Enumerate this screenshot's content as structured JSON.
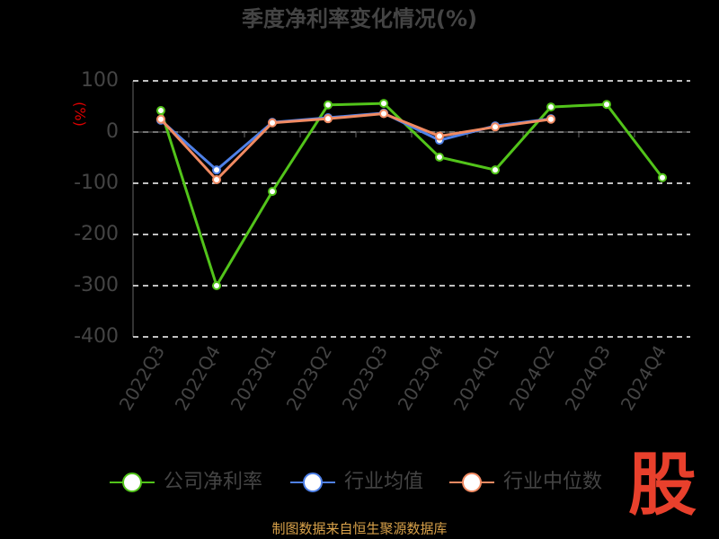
{
  "chart_data": {
    "type": "line",
    "title": "季度净利率变化情况(%)",
    "y_label": "(%)",
    "categories": [
      "2022Q3",
      "2022Q4",
      "2023Q1",
      "2023Q2",
      "2023Q3",
      "2023Q4",
      "2024Q1",
      "2024Q2",
      "2024Q3",
      "2024Q4"
    ],
    "series": [
      {
        "name": "公司净利率",
        "color": "#52c41a",
        "values": [
          42,
          -300,
          -116,
          53,
          56,
          -49,
          -74,
          49,
          54,
          -89
        ]
      },
      {
        "name": "行业均值",
        "color": "#4f81e8",
        "values": [
          23,
          -74,
          19,
          28,
          37,
          -16,
          12,
          26,
          null,
          null
        ]
      },
      {
        "name": "行业中位数",
        "color": "#f08a62",
        "values": [
          25,
          -93,
          18,
          26,
          36,
          -8,
          10,
          25,
          null,
          null
        ]
      }
    ],
    "ylim": [
      -400,
      100
    ],
    "yticks": [
      -400,
      -300,
      -200,
      -100,
      0,
      100
    ],
    "grid": true,
    "legend": "bottom",
    "source": "制图数据来自恒生聚源数据库",
    "logo": "股"
  }
}
